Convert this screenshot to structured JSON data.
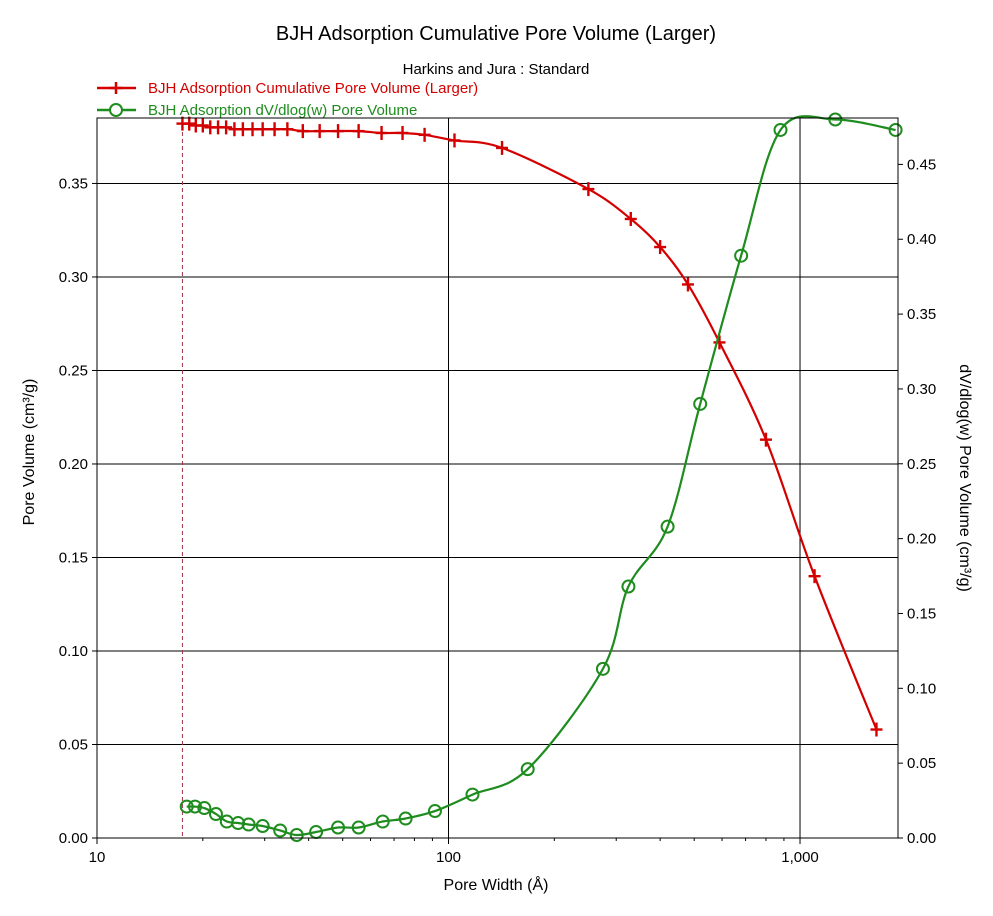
{
  "chart_data": {
    "type": "line",
    "title": "BJH Adsorption Cumulative Pore Volume (Larger)",
    "subtitle": "Harkins and Jura : Standard",
    "xlabel": "Pore Width (Å)",
    "ylabel": "Pore Volume (cm³/g)",
    "y2label": "dV/dlog(w) Pore Volume (cm³/g)",
    "xscale": "log",
    "xlim": [
      10,
      1900
    ],
    "ylim": [
      0,
      0.385
    ],
    "y2lim": [
      0,
      0.481
    ],
    "grid": true,
    "legend_position": "top-left",
    "x_ticks": [
      10,
      100,
      1000
    ],
    "x_tick_labels": [
      "10",
      "100",
      "1,000"
    ],
    "y_ticks": [
      0,
      0.05,
      0.1,
      0.15,
      0.2,
      0.25,
      0.3,
      0.35
    ],
    "y_tick_labels": [
      "0.00",
      "0.05",
      "0.10",
      "0.15",
      "0.20",
      "0.25",
      "0.30",
      "0.35"
    ],
    "y2_ticks": [
      0,
      0.05,
      0.1,
      0.15,
      0.2,
      0.25,
      0.3,
      0.35,
      0.4,
      0.45
    ],
    "y2_tick_labels": [
      "0.00",
      "0.05",
      "0.10",
      "0.15",
      "0.20",
      "0.25",
      "0.30",
      "0.35",
      "0.40",
      "0.45"
    ],
    "reference_line_x": 17.5,
    "series": [
      {
        "name": "BJH Adsorption Cumulative Pore Volume (Larger)",
        "axis": "left",
        "color": "#d40000",
        "marker": "plus",
        "x": [
          17.5,
          18.3,
          19.1,
          20.0,
          21.0,
          22.1,
          23.3,
          24.6,
          26.0,
          27.7,
          29.6,
          32.0,
          34.8,
          38.5,
          43.0,
          48.5,
          55.5,
          64.5,
          74.0,
          85.5,
          104.0,
          142.0,
          250.0,
          330.0,
          400.0,
          480.0,
          590.0,
          800.0,
          1100.0,
          1650.0
        ],
        "y": [
          0.382,
          0.382,
          0.381,
          0.381,
          0.38,
          0.38,
          0.38,
          0.379,
          0.379,
          0.379,
          0.379,
          0.379,
          0.379,
          0.378,
          0.378,
          0.378,
          0.378,
          0.377,
          0.377,
          0.376,
          0.373,
          0.369,
          0.347,
          0.331,
          0.316,
          0.296,
          0.265,
          0.213,
          0.14,
          0.058
        ]
      },
      {
        "name": "BJH Adsorption dV/dlog(w) Pore Volume",
        "axis": "right",
        "color": "#1e8c1e",
        "marker": "circle",
        "x": [
          18.0,
          19.0,
          20.2,
          21.8,
          23.4,
          25.2,
          27.0,
          29.6,
          33.2,
          37.0,
          42.0,
          48.5,
          55.5,
          65.0,
          75.5,
          91.5,
          117.0,
          168.0,
          275.0,
          325.0,
          420.0,
          520.0,
          680.0,
          880.0,
          1260.0,
          1870.0
        ],
        "y": [
          0.021,
          0.021,
          0.02,
          0.016,
          0.011,
          0.01,
          0.009,
          0.008,
          0.005,
          0.002,
          0.004,
          0.007,
          0.007,
          0.011,
          0.013,
          0.018,
          0.029,
          0.046,
          0.113,
          0.168,
          0.208,
          0.29,
          0.389,
          0.473,
          0.48,
          0.473
        ]
      }
    ]
  }
}
